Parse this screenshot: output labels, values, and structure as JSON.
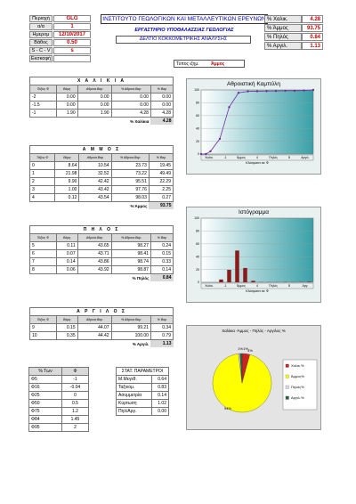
{
  "header": {
    "fields": [
      {
        "label": "Περιοχή",
        "value": "GLG"
      },
      {
        "label": "α/α",
        "value": "1"
      },
      {
        "label": "Ημερομ",
        "value": "12/10/2017"
      },
      {
        "label": "Βάθος",
        "value": "0.50"
      },
      {
        "label": "S - C - V",
        "value": "s"
      },
      {
        "label": "Εκσκαφή",
        "value": ""
      }
    ],
    "institute": "ΙΝΣΤΙΤΟΥΤΟ ΓΕΩΛΟΓΙΚΩΝ ΚΑΙ ΜΕΤΑΛΛΕΥΤΙΚΩΝ ΕΡΕΥΝΩΝ",
    "lab": "ΕΡΓΑΣΤΗΡΙΟ ΥΠΟΘΑΛΑΣΣΙΑΣ ΓΕΩΛΟΓΙΑΣ",
    "bulletin": "ΔΕΛΤΙΟ ΚΟΚΚΟΜΕΤΡΙΚΗΣ ΑΝΑΛΥΣΗΣ",
    "type_label": "Τύπος ιζημ.",
    "type_value": "Άμμος",
    "percents": [
      {
        "label": "% Χαλικ.",
        "value": "4.28"
      },
      {
        "label": "% Άμμος",
        "value": "93.75"
      },
      {
        "label": "% Πηλός",
        "value": "0.84"
      },
      {
        "label": "% Αργιλ.",
        "value": "1.13"
      }
    ]
  },
  "col_headers": [
    "Τάξεις Φ",
    "Βάρη",
    "Αθροισ.Βαρ",
    "% Αθροισ.Βαρ",
    "% Βαρ"
  ],
  "gravel": {
    "title": "Χ Α Λ Ι Κ Ι Α",
    "rows": [
      [
        "-2",
        "0.00",
        "0.00",
        "0.00",
        "0.00"
      ],
      [
        "-1.5",
        "0.00",
        "0.00",
        "0.00",
        "0.00"
      ],
      [
        "-1",
        "1.90",
        "1.90",
        "4.28",
        "4.28"
      ]
    ],
    "sum_label": "% Χαλίκια",
    "sum_value": "4.28"
  },
  "sand": {
    "title": "Α Μ Μ Ο Σ",
    "rows": [
      [
        "0",
        "8.64",
        "10.54",
        "23.73",
        "19.45"
      ],
      [
        "1",
        "21.98",
        "32.52",
        "73.22",
        "49.49"
      ],
      [
        "2",
        "9.90",
        "42.42",
        "95.51",
        "22.29"
      ],
      [
        "3",
        "1.00",
        "43.42",
        "97.76",
        "2.25"
      ],
      [
        "4",
        "0.12",
        "43.54",
        "98.03",
        "0.27"
      ]
    ],
    "sum_label": "% Άμμος",
    "sum_value": "93.75"
  },
  "silt": {
    "title": "Π Η Λ Ο Σ",
    "rows": [
      [
        "5",
        "0.11",
        "43.65",
        "98.27",
        "0.24"
      ],
      [
        "6",
        "0.07",
        "43.71",
        "98.41",
        "0.15"
      ],
      [
        "7",
        "0.14",
        "43.86",
        "98.74",
        "0.33"
      ],
      [
        "8",
        "0.06",
        "43.92",
        "98.87",
        "0.14"
      ]
    ],
    "sum_label": "% Πηλός",
    "sum_value": "0.84"
  },
  "clay": {
    "title": "Α Ρ Γ Ι Λ Ο Σ",
    "rows": [
      [
        "9",
        "0.15",
        "44.07",
        "99.21",
        "0.34"
      ],
      [
        "10",
        "0.35",
        "44.42",
        "100.00",
        "0.79"
      ]
    ],
    "sum_label": "% Αργιλ.",
    "sum_value": "1.13"
  },
  "phi_table": {
    "header": [
      "% Των",
      "Φ"
    ],
    "rows": [
      [
        "Φ5",
        "-1"
      ],
      [
        "Φ16",
        "-0.04"
      ],
      [
        "Φ25",
        "0"
      ],
      [
        "Φ50",
        "0.5"
      ],
      [
        "Φ75",
        "1.2"
      ],
      [
        "Φ84",
        "1.45"
      ],
      [
        "Φ95",
        "2"
      ]
    ]
  },
  "stat_table": {
    "header": "ΣΤΑΤ. ΠΑΡΑΜΕΤΡΟΙ",
    "rows": [
      [
        "Μ.Μεγεθ.",
        "0.64"
      ],
      [
        "Ταξινόμ.",
        "0.83"
      ],
      [
        "Ασυμμετρία",
        "0.14"
      ],
      [
        "Κύρτωση",
        "1.02"
      ],
      [
        "Πηλ/Αργ.",
        "0.00"
      ]
    ]
  },
  "chart_data": [
    {
      "type": "line",
      "title": "Αθροιστική Καμπύλη",
      "xlabel": "Κλάσματα σε Φ",
      "x_tick_labels": [
        "Χαλικ.",
        "-1",
        "Άμμος",
        "4",
        "Πηλός",
        "8",
        "Αργιλ."
      ],
      "x": [
        -2,
        -1.5,
        -1,
        0,
        1,
        2,
        3,
        4,
        5,
        6,
        7,
        8,
        9,
        10
      ],
      "values": [
        0,
        0,
        4.28,
        23.73,
        73.22,
        95.51,
        97.76,
        98.03,
        98.27,
        98.41,
        98.74,
        98.87,
        99.21,
        100
      ],
      "y_ticks": [
        0,
        20,
        40,
        60,
        80,
        100
      ],
      "ylim": [
        0,
        100
      ]
    },
    {
      "type": "bar",
      "title": "Ιστόγραμμα",
      "xlabel": "Κλάσματα σε Φ",
      "x_tick_labels": [
        "Χαλικ.",
        "-1",
        "Άμμος",
        "4",
        "Πηλός",
        "8",
        "Αργ."
      ],
      "categories": [
        "-2",
        "-1.5",
        "-1",
        "0",
        "1",
        "2",
        "3",
        "4",
        "5",
        "6",
        "7",
        "8",
        "9",
        "10"
      ],
      "values": [
        0,
        0,
        4.28,
        19.45,
        49.49,
        22.29,
        2.25,
        0.27,
        0.24,
        0.15,
        0.33,
        0.14,
        0.34,
        0.79
      ],
      "y_ticks": [
        0,
        20,
        40,
        60,
        80,
        100
      ],
      "ylim": [
        0,
        100
      ],
      "bar_color": "#8b1a1a"
    },
    {
      "type": "pie",
      "title": "Χαλίκια -Άμμος - Πηλός - Αργιλος  %",
      "slice_labels": [
        "1%",
        "1%",
        "4%",
        "94%"
      ],
      "legend": [
        "Χαλικ.%",
        "Άμμος%",
        "Πηλός%",
        "Αργιλ.%"
      ],
      "values": [
        4.28,
        93.75,
        0.84,
        1.13
      ],
      "colors": [
        "#cc2222",
        "#ffff00",
        "#d8d8ee",
        "#226644"
      ]
    }
  ]
}
